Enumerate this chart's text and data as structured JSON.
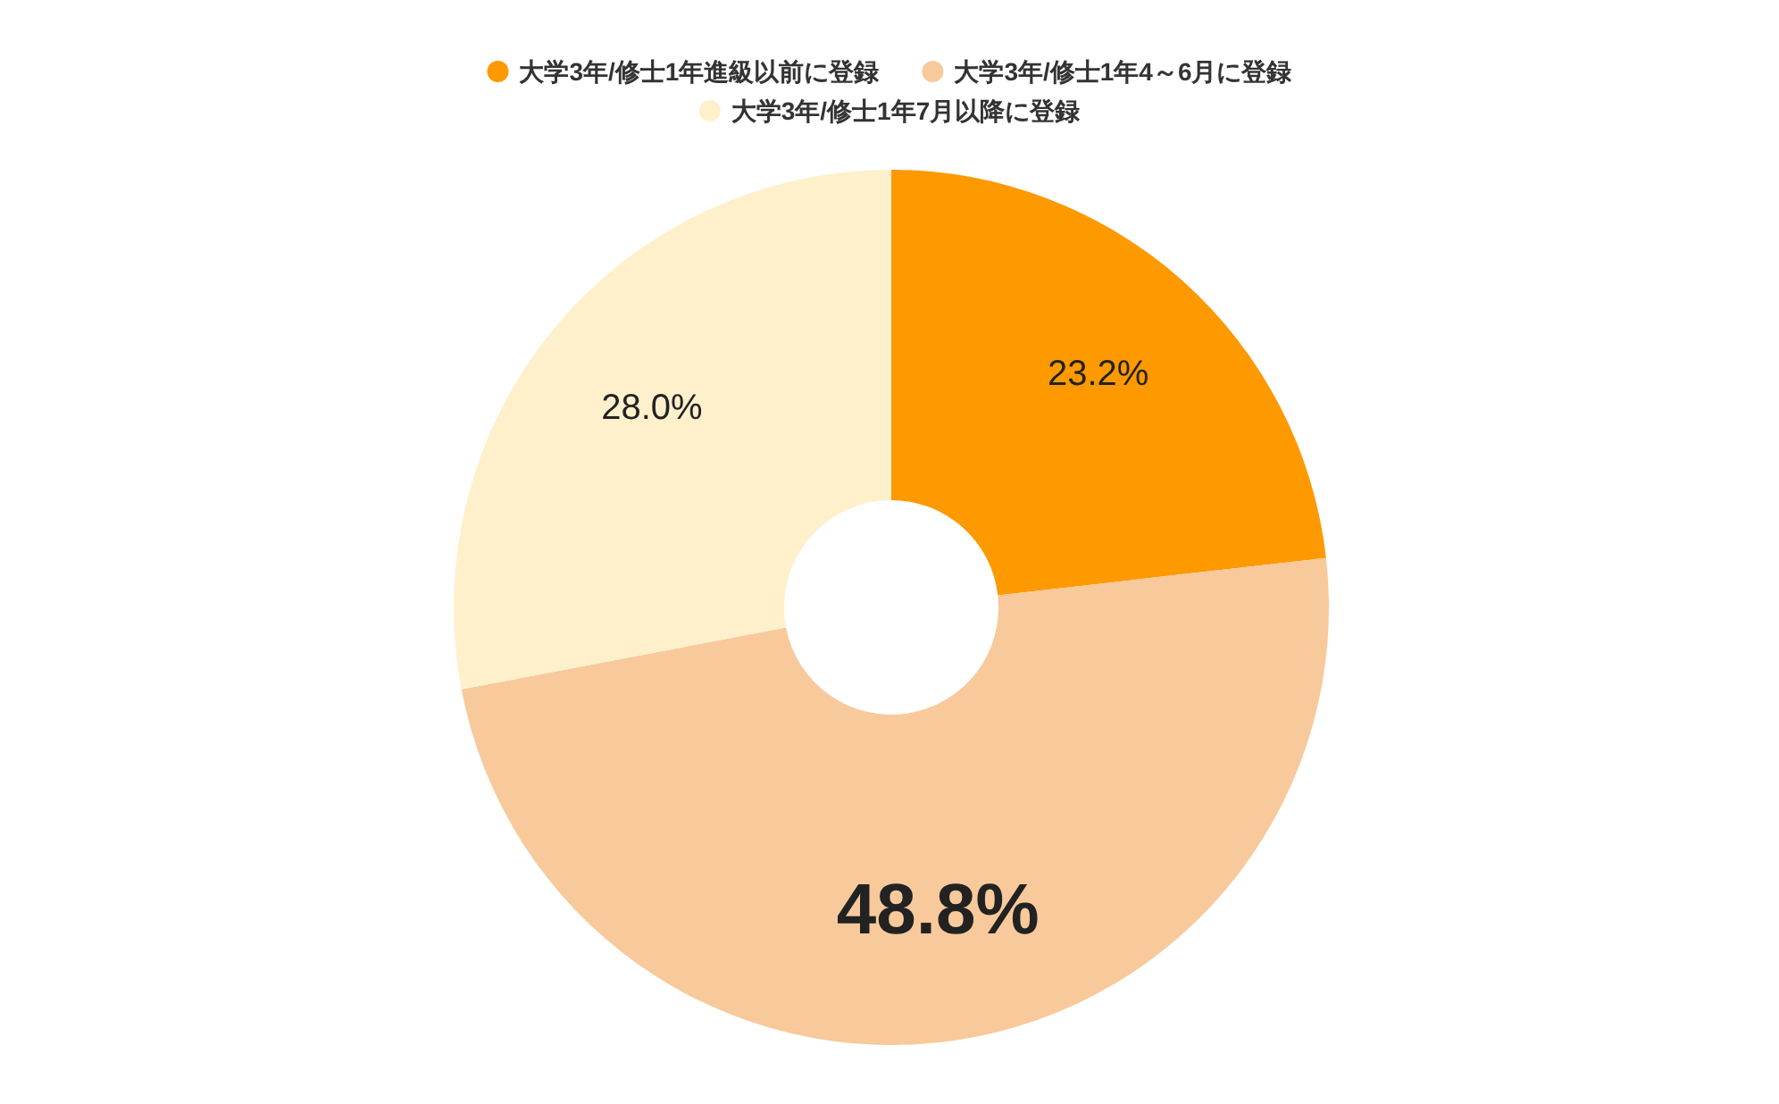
{
  "chart_data": {
    "type": "donut",
    "categories": [
      "大学3年/修士1年進級以前に登録",
      "大学3年/修士1年4～6月に登録",
      "大学3年/修士1年7月以降に登録"
    ],
    "values": [
      23.2,
      48.8,
      28.0
    ],
    "colors": [
      "#ff9900",
      "#f8c99b",
      "#fff0cc"
    ],
    "value_labels": [
      "23.2%",
      "48.8%",
      "28.0%"
    ],
    "legend": "top"
  }
}
